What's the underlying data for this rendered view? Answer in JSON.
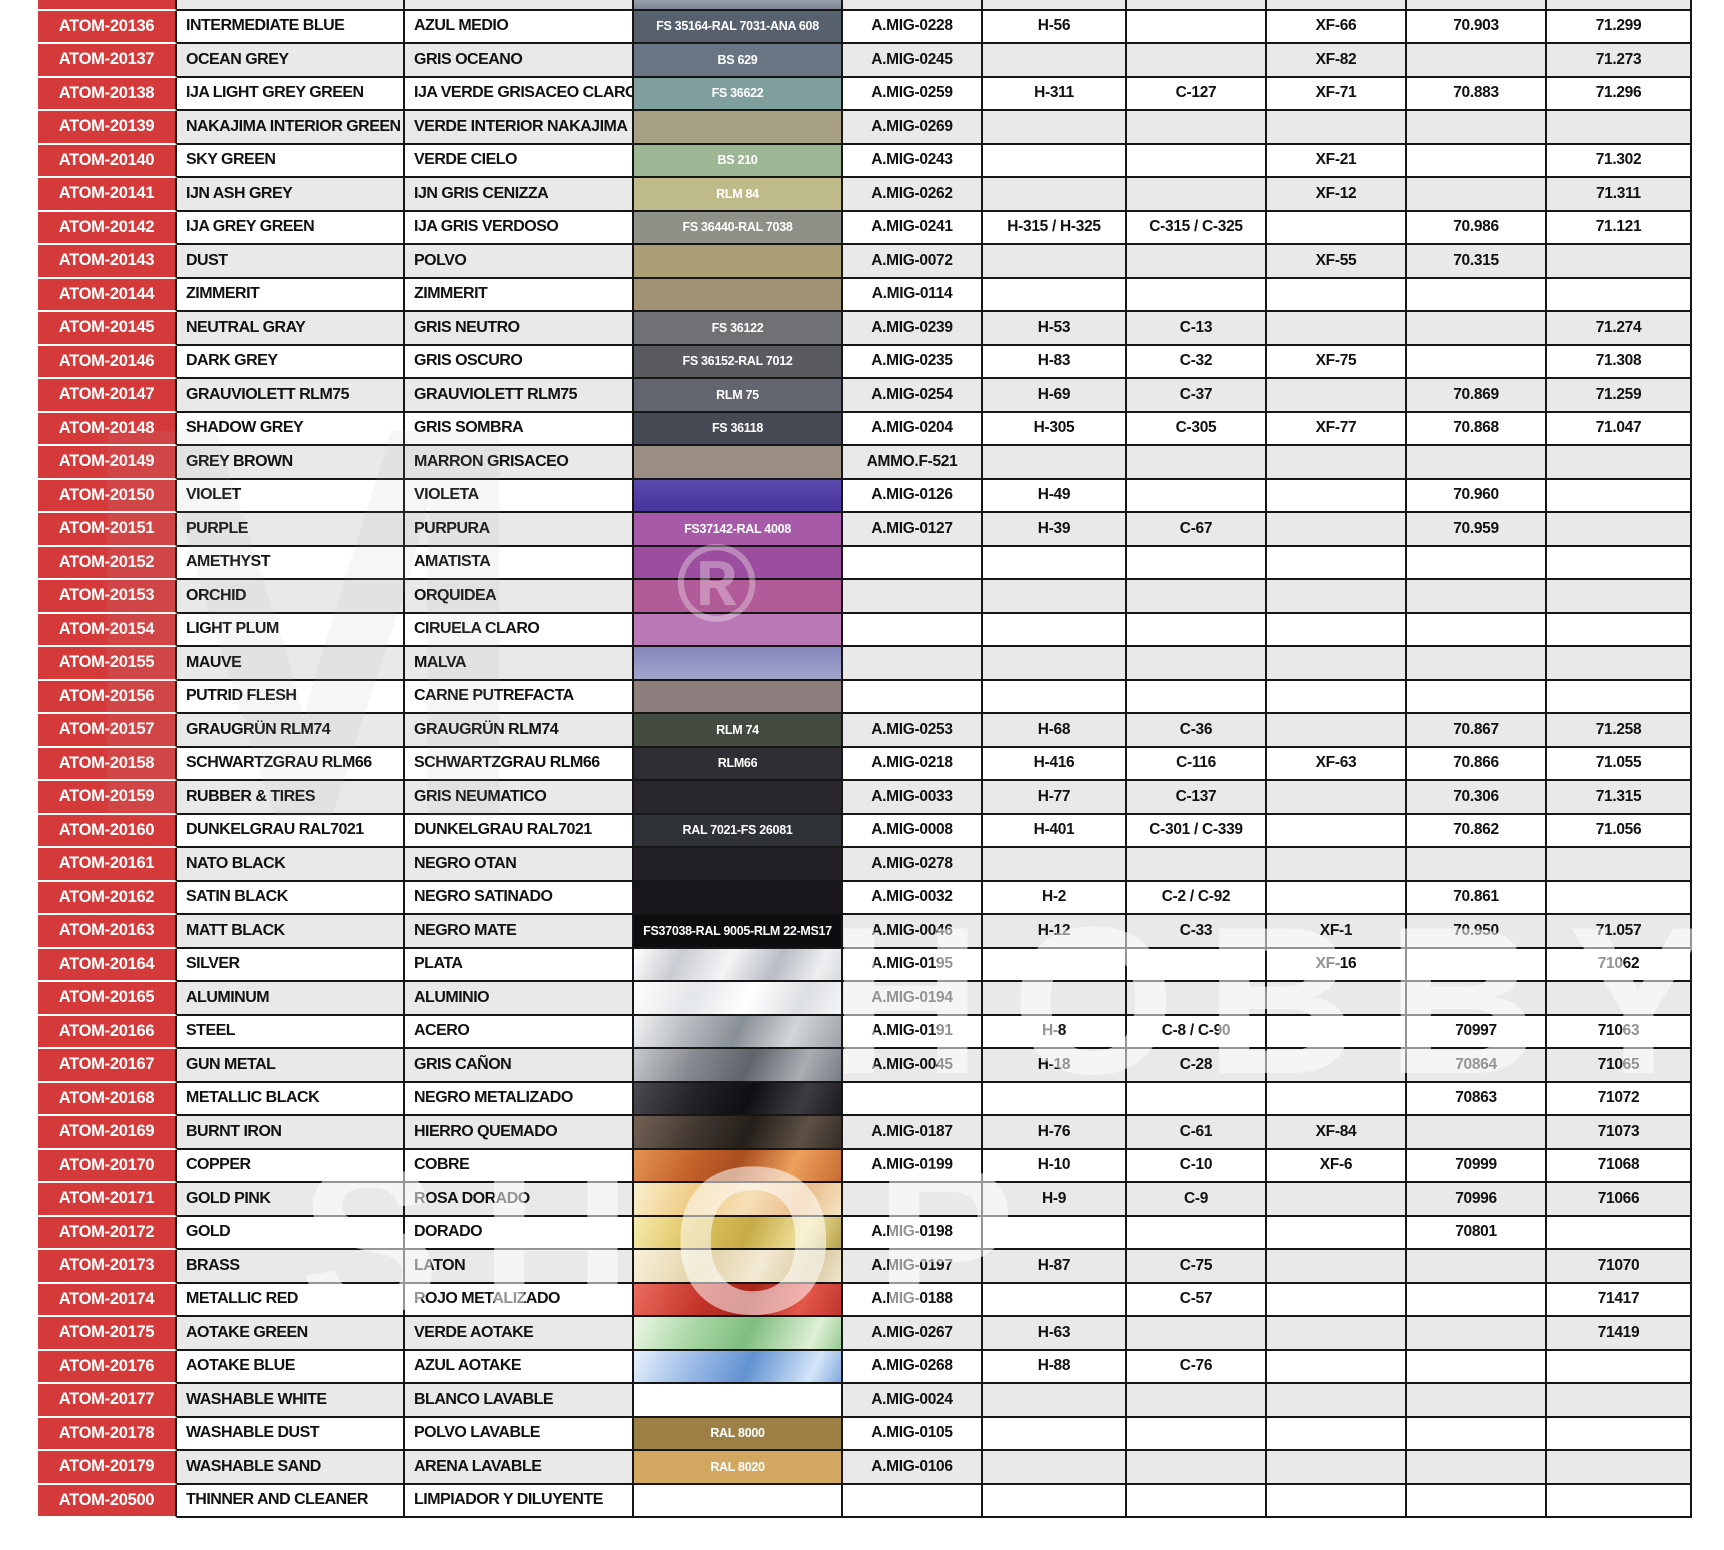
{
  "page": {
    "background": "#ffffff"
  },
  "colors": {
    "atom_code_red": "#d43a3a",
    "grid_line": "#161616",
    "row_alt_grey": "#e9e9e9",
    "row_white": "#ffffff"
  },
  "watermarks": {
    "big_m": "M",
    "registered": "®",
    "hobby": "HOBBY",
    "shop": "SHOP"
  },
  "partial_top_row": {
    "shade": "g",
    "swatch_bg": "linear-gradient(180deg,#9aa0ab,#7d8390)"
  },
  "rows": [
    {
      "code": "ATOM-20136",
      "name_en": "INTERMEDIATE BLUE",
      "name_es": "AZUL MEDIO",
      "swatch_label": "FS 35164-RAL 7031-ANA 608",
      "swatch_bg": "#57616e",
      "amig": "A.MIG-0228",
      "hobby": "H-56",
      "mrcolor": "",
      "tamiya": "XF-66",
      "vallejo70": "70.903",
      "vallejo71": "71.299",
      "shade": "w"
    },
    {
      "code": "ATOM-20137",
      "name_en": "OCEAN GREY",
      "name_es": "GRIS OCEANO",
      "swatch_label": "BS 629",
      "swatch_bg": "#697582",
      "amig": "A.MIG-0245",
      "hobby": "",
      "mrcolor": "",
      "tamiya": "XF-82",
      "vallejo70": "",
      "vallejo71": "71.273",
      "shade": "g"
    },
    {
      "code": "ATOM-20138",
      "name_en": "IJA LIGHT GREY GREEN",
      "name_es": "IJA VERDE GRISACEO CLARO",
      "swatch_label": "FS 36622",
      "swatch_bg": "#7f9f9d",
      "amig": "A.MIG-0259",
      "hobby": "H-311",
      "mrcolor": "C-127",
      "tamiya": "XF-71",
      "vallejo70": "70.883",
      "vallejo71": "71.296",
      "shade": "w"
    },
    {
      "code": "ATOM-20139",
      "name_en": "NAKAJIMA INTERIOR GREEN",
      "name_es": "VERDE INTERIOR NAKAJIMA",
      "swatch_label": "",
      "swatch_bg": "#a79f82",
      "amig": "A.MIG-0269",
      "hobby": "",
      "mrcolor": "",
      "tamiya": "",
      "vallejo70": "",
      "vallejo71": "",
      "shade": "g"
    },
    {
      "code": "ATOM-20140",
      "name_en": "SKY GREEN",
      "name_es": "VERDE CIELO",
      "swatch_label": "BS 210",
      "swatch_bg": "#9db795",
      "amig": "A.MIG-0243",
      "hobby": "",
      "mrcolor": "",
      "tamiya": "XF-21",
      "vallejo70": "",
      "vallejo71": "71.302",
      "shade": "w"
    },
    {
      "code": "ATOM-20141",
      "name_en": "IJN ASH GREY",
      "name_es": "IJN GRIS CENIZZA",
      "swatch_label": "RLM 84",
      "swatch_bg": "#bfba8a",
      "amig": "A.MIG-0262",
      "hobby": "",
      "mrcolor": "",
      "tamiya": "XF-12",
      "vallejo70": "",
      "vallejo71": "71.311",
      "shade": "g"
    },
    {
      "code": "ATOM-20142",
      "name_en": "IJA GREY GREEN",
      "name_es": "IJA GRIS VERDOSO",
      "swatch_label": "FS 36440-RAL 7038",
      "swatch_bg": "#8f9189",
      "amig": "A.MIG-0241",
      "hobby": "H-315 / H-325",
      "mrcolor": "C-315 / C-325",
      "tamiya": "",
      "vallejo70": "70.986",
      "vallejo71": "71.121",
      "shade": "w"
    },
    {
      "code": "ATOM-20143",
      "name_en": "DUST",
      "name_es": "POLVO",
      "swatch_label": "",
      "swatch_bg": "#ab9e77",
      "amig": "A.MIG-0072",
      "hobby": "",
      "mrcolor": "",
      "tamiya": "XF-55",
      "vallejo70": "70.315",
      "vallejo71": "",
      "shade": "g"
    },
    {
      "code": "ATOM-20144",
      "name_en": "ZIMMERIT",
      "name_es": "ZIMMERIT",
      "swatch_label": "",
      "swatch_bg": "#a29172",
      "amig": "A.MIG-0114",
      "hobby": "",
      "mrcolor": "",
      "tamiya": "",
      "vallejo70": "",
      "vallejo71": "",
      "shade": "w"
    },
    {
      "code": "ATOM-20145",
      "name_en": "NEUTRAL GRAY",
      "name_es": "GRIS NEUTRO",
      "swatch_label": "FS 36122",
      "swatch_bg": "#707174",
      "amig": "A.MIG-0239",
      "hobby": "H-53",
      "mrcolor": "C-13",
      "tamiya": "",
      "vallejo70": "",
      "vallejo71": "71.274",
      "shade": "g"
    },
    {
      "code": "ATOM-20146",
      "name_en": "DARK GREY",
      "name_es": "GRIS OSCURO",
      "swatch_label": "FS 36152-RAL 7012",
      "swatch_bg": "#595b60",
      "amig": "A.MIG-0235",
      "hobby": "H-83",
      "mrcolor": "C-32",
      "tamiya": "XF-75",
      "vallejo70": "",
      "vallejo71": "71.308",
      "shade": "w"
    },
    {
      "code": "ATOM-20147",
      "name_en": "GRAUVIOLETT RLM75",
      "name_es": "GRAUVIOLETT RLM75",
      "swatch_label": "RLM 75",
      "swatch_bg": "#63656f",
      "amig": "A.MIG-0254",
      "hobby": "H-69",
      "mrcolor": "C-37",
      "tamiya": "",
      "vallejo70": "70.869",
      "vallejo71": "71.259",
      "shade": "g"
    },
    {
      "code": "ATOM-20148",
      "name_en": "SHADOW GREY",
      "name_es": "GRIS SOMBRA",
      "swatch_label": "FS 36118",
      "swatch_bg": "#464a54",
      "amig": "A.MIG-0204",
      "hobby": "H-305",
      "mrcolor": "C-305",
      "tamiya": "XF-77",
      "vallejo70": "70.868",
      "vallejo71": "71.047",
      "shade": "w"
    },
    {
      "code": "ATOM-20149",
      "name_en": "GREY BROWN",
      "name_es": "MARRON GRISACEO",
      "swatch_label": "",
      "swatch_bg": "#998d84",
      "amig": "AMMO.F-521",
      "hobby": "",
      "mrcolor": "",
      "tamiya": "",
      "vallejo70": "",
      "vallejo71": "",
      "shade": "g"
    },
    {
      "code": "ATOM-20150",
      "name_en": "VIOLET",
      "name_es": "VIOLETA",
      "swatch_label": "",
      "swatch_bg": "linear-gradient(180deg,#5a49ad 0%,#47349c 100%)",
      "amig": "A.MIG-0126",
      "hobby": "H-49",
      "mrcolor": "",
      "tamiya": "",
      "vallejo70": "70.960",
      "vallejo71": "",
      "shade": "w"
    },
    {
      "code": "ATOM-20151",
      "name_en": "PURPLE",
      "name_es": "PURPURA",
      "swatch_label": "FS37142-RAL 4008",
      "swatch_bg": "#a75aa8",
      "amig": "A.MIG-0127",
      "hobby": "H-39",
      "mrcolor": "C-67",
      "tamiya": "",
      "vallejo70": "70.959",
      "vallejo71": "",
      "shade": "g"
    },
    {
      "code": "ATOM-20152",
      "name_en": "AMETHYST",
      "name_es": "AMATISTA",
      "swatch_label": "",
      "swatch_bg": "#9b4e9e",
      "amig": "",
      "hobby": "",
      "mrcolor": "",
      "tamiya": "",
      "vallejo70": "",
      "vallejo71": "",
      "shade": "w"
    },
    {
      "code": "ATOM-20153",
      "name_en": "ORCHID",
      "name_es": "ORQUIDEA",
      "swatch_label": "",
      "swatch_bg": "#b15b99",
      "amig": "",
      "hobby": "",
      "mrcolor": "",
      "tamiya": "",
      "vallejo70": "",
      "vallejo71": "",
      "shade": "g"
    },
    {
      "code": "ATOM-20154",
      "name_en": "LIGHT PLUM",
      "name_es": "CIRUELA CLARO",
      "swatch_label": "",
      "swatch_bg": "#ba78b6",
      "amig": "",
      "hobby": "",
      "mrcolor": "",
      "tamiya": "",
      "vallejo70": "",
      "vallejo71": "",
      "shade": "w"
    },
    {
      "code": "ATOM-20155",
      "name_en": "MAUVE",
      "name_es": "MALVA",
      "swatch_label": "",
      "swatch_bg": "linear-gradient(180deg,#8385bc 0%,#a4a5cc 100%)",
      "amig": "",
      "hobby": "",
      "mrcolor": "",
      "tamiya": "",
      "vallejo70": "",
      "vallejo71": "",
      "shade": "g"
    },
    {
      "code": "ATOM-20156",
      "name_en": "PUTRID FLESH",
      "name_es": "CARNE PUTREFACTA",
      "swatch_label": "",
      "swatch_bg": "#8c7f7e",
      "amig": "",
      "hobby": "",
      "mrcolor": "",
      "tamiya": "",
      "vallejo70": "",
      "vallejo71": "",
      "shade": "w"
    },
    {
      "code": "ATOM-20157",
      "name_en": "GRAUGRÜN RLM74",
      "name_es": "GRAUGRÜN RLM74",
      "swatch_label": "RLM 74",
      "swatch_bg": "#434a40",
      "amig": "A.MIG-0253",
      "hobby": "H-68",
      "mrcolor": "C-36",
      "tamiya": "",
      "vallejo70": "70.867",
      "vallejo71": "71.258",
      "shade": "g"
    },
    {
      "code": "ATOM-20158",
      "name_en": "SCHWARTZGRAU RLM66",
      "name_es": "SCHWARTZGRAU RLM66",
      "swatch_label": "RLM66",
      "swatch_bg": "#2f2e34",
      "amig": "A.MIG-0218",
      "hobby": "H-416",
      "mrcolor": "C-116",
      "tamiya": "XF-63",
      "vallejo70": "70.866",
      "vallejo71": "71.055",
      "shade": "w"
    },
    {
      "code": "ATOM-20159",
      "name_en": "RUBBER & TIRES",
      "name_es": "GRIS NEUMATICO",
      "swatch_label": "",
      "swatch_bg": "#2a272c",
      "amig": "A.MIG-0033",
      "hobby": "H-77",
      "mrcolor": "C-137",
      "tamiya": "",
      "vallejo70": "70.306",
      "vallejo71": "71.315",
      "shade": "g"
    },
    {
      "code": "ATOM-20160",
      "name_en": "DUNKELGRAU RAL7021",
      "name_es": "DUNKELGRAU RAL7021",
      "swatch_label": "RAL 7021-FS 26081",
      "swatch_bg": "#2f3237",
      "amig": "A.MIG-0008",
      "hobby": "H-401",
      "mrcolor": "C-301 / C-339",
      "tamiya": "",
      "vallejo70": "70.862",
      "vallejo71": "71.056",
      "shade": "w"
    },
    {
      "code": "ATOM-20161",
      "name_en": "NATO BLACK",
      "name_es": "NEGRO OTAN",
      "swatch_label": "",
      "swatch_bg": "#222025",
      "amig": "A.MIG-0278",
      "hobby": "",
      "mrcolor": "",
      "tamiya": "",
      "vallejo70": "",
      "vallejo71": "",
      "shade": "g"
    },
    {
      "code": "ATOM-20162",
      "name_en": "SATIN BLACK",
      "name_es": "NEGRO SATINADO",
      "swatch_label": "",
      "swatch_bg": "#18161a",
      "amig": "A.MIG-0032",
      "hobby": "H-2",
      "mrcolor": "C-2 / C-92",
      "tamiya": "",
      "vallejo70": "70.861",
      "vallejo71": "",
      "shade": "w"
    },
    {
      "code": "ATOM-20163",
      "name_en": "MATT BLACK",
      "name_es": "NEGRO MATE",
      "swatch_label": "FS37038-RAL 9005-RLM 22-MS17",
      "swatch_bg": "#0d0d0f",
      "amig": "A.MIG-0046",
      "hobby": "H-12",
      "mrcolor": "C-33",
      "tamiya": "XF-1",
      "vallejo70": "70.950",
      "vallejo71": "71.057",
      "shade": "g"
    },
    {
      "code": "ATOM-20164",
      "name_en": "SILVER",
      "name_es": "PLATA",
      "swatch_label": "",
      "swatch_bg": "linear-gradient(115deg,#ffffff 0%,#c9ccd2 22%,#f3f4f6 45%,#b9bdc4 68%,#eceef0 88%,#d9dce0 100%)",
      "amig": "A.MIG-0195",
      "hobby": "",
      "mrcolor": "",
      "tamiya": "XF-16",
      "vallejo70": "",
      "vallejo71": "71062",
      "shade": "w"
    },
    {
      "code": "ATOM-20165",
      "name_en": "ALUMINUM",
      "name_es": "ALUMINIO",
      "swatch_label": "",
      "swatch_bg": "linear-gradient(115deg,#fefefe 0%,#e3e6ea 30%,#ffffff 55%,#dcdfe3 80%,#f4f5f7 100%)",
      "amig": "A.MIG-0194",
      "hobby": "",
      "mrcolor": "",
      "tamiya": "",
      "vallejo70": "",
      "vallejo71": "",
      "shade": "g"
    },
    {
      "code": "ATOM-20166",
      "name_en": "STEEL",
      "name_es": "ACERO",
      "swatch_label": "",
      "swatch_bg": "linear-gradient(115deg,#f1f2f3 0%,#b9bdc2 25%,#898f96 50%,#d2d5d8 75%,#9ea3a9 100%)",
      "amig": "A.MIG-0191",
      "hobby": "H-8",
      "mrcolor": "C-8 / C-90",
      "tamiya": "",
      "vallejo70": "70997",
      "vallejo71": "71063",
      "shade": "w"
    },
    {
      "code": "ATOM-20167",
      "name_en": "GUN METAL",
      "name_es": "GRIS CAÑON",
      "swatch_label": "",
      "swatch_bg": "linear-gradient(115deg,#c6c9cd 0%,#84888e 30%,#5f646b 55%,#aaaeb3 80%,#787d84 100%)",
      "amig": "A.MIG-0045",
      "hobby": "H-18",
      "mrcolor": "C-28",
      "tamiya": "",
      "vallejo70": "70864",
      "vallejo71": "71065",
      "shade": "g"
    },
    {
      "code": "ATOM-20168",
      "name_en": "METALLIC BLACK",
      "name_es": "NEGRO METALIZADO",
      "swatch_label": "",
      "swatch_bg": "linear-gradient(115deg,#4b4b51 0%,#222227 30%,#0f0f13 55%,#3c3c42 80%,#1a1a1f 100%)",
      "amig": "",
      "hobby": "",
      "mrcolor": "",
      "tamiya": "",
      "vallejo70": "70863",
      "vallejo71": "71072",
      "shade": "w"
    },
    {
      "code": "ATOM-20169",
      "name_en": "BURNT IRON",
      "name_es": "HIERRO QUEMADO",
      "swatch_label": "",
      "swatch_bg": "linear-gradient(115deg,#756356 0%,#423831 30%,#241f1b 55%,#5e5045 80%,#352d27 100%)",
      "amig": "A.MIG-0187",
      "hobby": "H-76",
      "mrcolor": "C-61",
      "tamiya": "XF-84",
      "vallejo70": "",
      "vallejo71": "71073",
      "shade": "g"
    },
    {
      "code": "ATOM-20170",
      "name_en": "COPPER",
      "name_es": "COBRE",
      "swatch_label": "",
      "swatch_bg": "linear-gradient(115deg,#e39455 0%,#c3602a 30%,#a94e20 50%,#eda05c 75%,#c76d33 100%)",
      "amig": "A.MIG-0199",
      "hobby": "H-10",
      "mrcolor": "C-10",
      "tamiya": "XF-6",
      "vallejo70": "70999",
      "vallejo71": "71068",
      "shade": "w"
    },
    {
      "code": "ATOM-20171",
      "name_en": "GOLD PINK",
      "name_es": "ROSA DORADO",
      "swatch_label": "",
      "swatch_bg": "linear-gradient(115deg,#faf0d0 0%,#eeca82 30%,#f6dfb6 55%,#e9bd8c 80%,#f4e3c0 100%)",
      "amig": "",
      "hobby": "H-9",
      "mrcolor": "C-9",
      "tamiya": "",
      "vallejo70": "70996",
      "vallejo71": "71066",
      "shade": "g"
    },
    {
      "code": "ATOM-20172",
      "name_en": "GOLD",
      "name_es": "DORADO",
      "swatch_label": "",
      "swatch_bg": "linear-gradient(115deg,#f7ecb0 0%,#dec25e 30%,#c6ab48 55%,#f0e29c 80%,#b7a24c 100%)",
      "amig": "A.MIG-0198",
      "hobby": "",
      "mrcolor": "",
      "tamiya": "",
      "vallejo70": "70801",
      "vallejo71": "",
      "shade": "w"
    },
    {
      "code": "ATOM-20173",
      "name_en": "BRASS",
      "name_es": "LATON",
      "swatch_label": "",
      "swatch_bg": "linear-gradient(115deg,#f8f1da 0%,#e2d2a8 35%,#f3ead4 60%,#d9c89e 85%,#efe7cf 100%)",
      "amig": "A.MIG-0197",
      "hobby": "H-87",
      "mrcolor": "C-75",
      "tamiya": "",
      "vallejo70": "",
      "vallejo71": "71070",
      "shade": "g"
    },
    {
      "code": "ATOM-20174",
      "name_en": "METALLIC RED",
      "name_es": "ROJO METALIZADO",
      "swatch_label": "",
      "swatch_bg": "linear-gradient(115deg,#ec6c5f 0%,#c23329 35%,#a8251d 55%,#e4574b 80%,#c0362c 100%)",
      "amig": "A.MIG-0188",
      "hobby": "",
      "mrcolor": "C-57",
      "tamiya": "",
      "vallejo70": "",
      "vallejo71": "71417",
      "shade": "w"
    },
    {
      "code": "ATOM-20175",
      "name_en": "AOTAKE GREEN",
      "name_es": "VERDE AOTAKE",
      "swatch_label": "",
      "swatch_bg": "linear-gradient(115deg,#edf7e5 0%,#a8d6a5 30%,#7fbd7f 55%,#dff0d6 85%,#98cb95 100%)",
      "amig": "A.MIG-0267",
      "hobby": "H-63",
      "mrcolor": "",
      "tamiya": "",
      "vallejo70": "",
      "vallejo71": "71419",
      "shade": "g"
    },
    {
      "code": "ATOM-20176",
      "name_en": "AOTAKE BLUE",
      "name_es": "AZUL AOTAKE",
      "swatch_label": "",
      "swatch_bg": "linear-gradient(115deg,#e7f1fc 0%,#9ab9e6 30%,#6292d2 55%,#d4e5f8 85%,#85abdf 100%)",
      "amig": "A.MIG-0268",
      "hobby": "H-88",
      "mrcolor": "C-76",
      "tamiya": "",
      "vallejo70": "",
      "vallejo71": "",
      "shade": "w"
    },
    {
      "code": "ATOM-20177",
      "name_en": "WASHABLE WHITE",
      "name_es": "BLANCO LAVABLE",
      "swatch_label": "",
      "swatch_bg": "#ffffff",
      "amig": "A.MIG-0024",
      "hobby": "",
      "mrcolor": "",
      "tamiya": "",
      "vallejo70": "",
      "vallejo71": "",
      "shade": "g"
    },
    {
      "code": "ATOM-20178",
      "name_en": "WASHABLE DUST",
      "name_es": "POLVO LAVABLE",
      "swatch_label": "RAL 8000",
      "swatch_bg": "#9c8045",
      "amig": "A.MIG-0105",
      "hobby": "",
      "mrcolor": "",
      "tamiya": "",
      "vallejo70": "",
      "vallejo71": "",
      "shade": "w"
    },
    {
      "code": "ATOM-20179",
      "name_en": "WASHABLE SAND",
      "name_es": "ARENA LAVABLE",
      "swatch_label": "RAL 8020",
      "swatch_bg": "#d2a860",
      "amig": "A.MIG-0106",
      "hobby": "",
      "mrcolor": "",
      "tamiya": "",
      "vallejo70": "",
      "vallejo71": "",
      "shade": "g"
    },
    {
      "code": "ATOM-20500",
      "name_en": "THINNER AND CLEANER",
      "name_es": "LIMPIADOR Y DILUYENTE",
      "swatch_label": "",
      "swatch_bg": "#ffffff",
      "amig": "",
      "hobby": "",
      "mrcolor": "",
      "tamiya": "",
      "vallejo70": "",
      "vallejo71": "",
      "shade": "w"
    }
  ]
}
